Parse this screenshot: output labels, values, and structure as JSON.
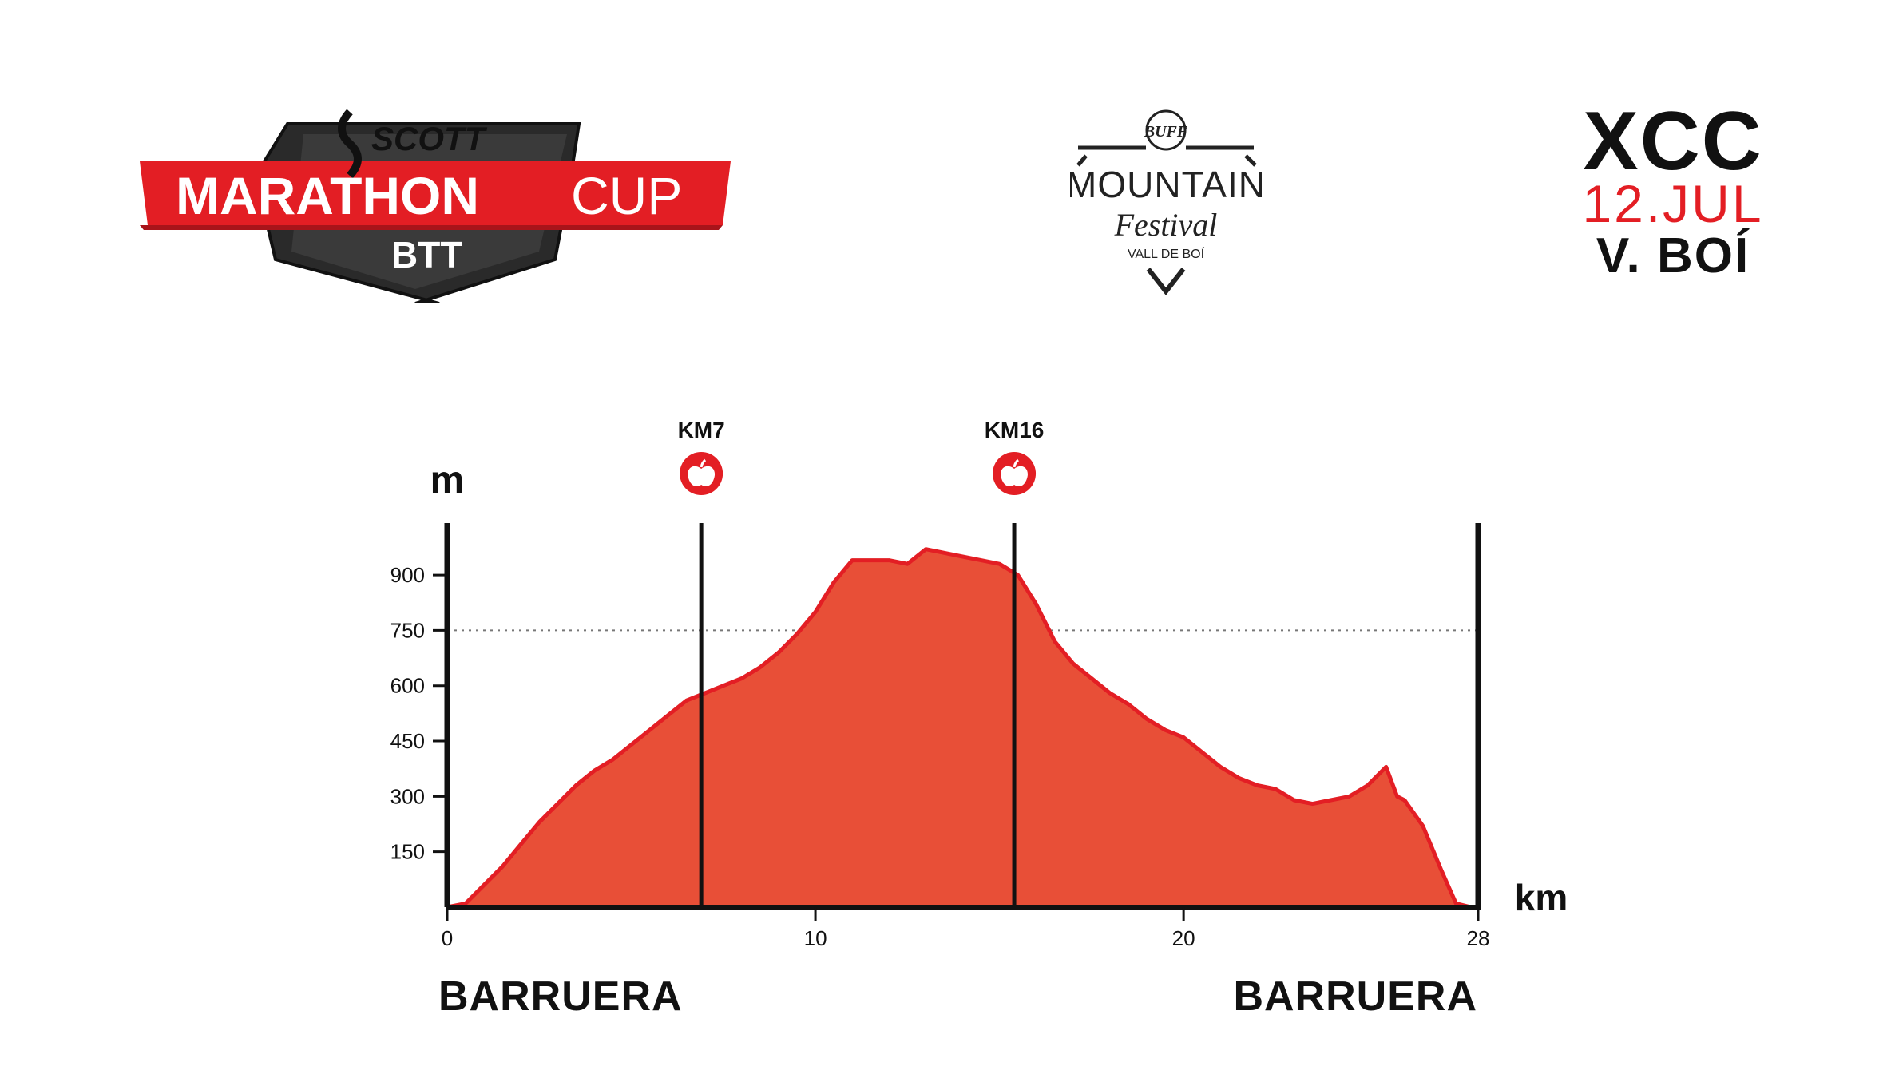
{
  "header": {
    "left_logo": {
      "brand": "SCOTT",
      "line1": "MARATHON",
      "line2": "CUP",
      "line3": "BTT",
      "brand_color": "#e31e24"
    },
    "center_logo": {
      "badge": "BUFF",
      "line1": "MOUNTAIN",
      "line2": "Festival",
      "line3": "VALL DE BOÍ"
    },
    "event": {
      "code": "XCC",
      "date": "12.JUL",
      "place": "V. BOÍ"
    }
  },
  "towns": {
    "start": "BARRUERA",
    "end": "BARRUERA"
  },
  "colors": {
    "fill": "#e84f37",
    "stroke": "#e31e24",
    "axis": "#111111",
    "accent": "#e31e24"
  },
  "icons": {
    "aid_station": "apple-icon"
  },
  "chart_data": {
    "type": "area",
    "xlabel": "km",
    "ylabel": "m",
    "xlim": [
      0,
      28
    ],
    "ylim": [
      0,
      1030
    ],
    "x_ticks": [
      0,
      10,
      20,
      28
    ],
    "y_ticks": [
      150,
      300,
      450,
      600,
      750,
      900
    ],
    "reference_line": {
      "y": 750,
      "style": "dotted"
    },
    "markers": [
      {
        "label": "KM7",
        "x": 6.9,
        "icon": "apple-icon"
      },
      {
        "label": "KM16",
        "x": 15.4,
        "icon": "apple-icon"
      }
    ],
    "series": [
      {
        "x": [
          0,
          0.5,
          1,
          1.5,
          2,
          2.5,
          3,
          3.5,
          4,
          4.5,
          5,
          5.5,
          6,
          6.5,
          7,
          7.5,
          8,
          8.5,
          9,
          9.5,
          10,
          10.5,
          11,
          11.5,
          12,
          12.5,
          13,
          13.5,
          14,
          14.5,
          15,
          15.5,
          16,
          16.5,
          17,
          17.5,
          18,
          18.5,
          19,
          19.5,
          20,
          20.5,
          21,
          21.5,
          22,
          22.5,
          23,
          23.5,
          24,
          24.5,
          25,
          25.5,
          25.8,
          26,
          26.5,
          27,
          27.4,
          27.8,
          28
        ],
        "y": [
          0,
          10,
          60,
          110,
          170,
          230,
          280,
          330,
          370,
          400,
          440,
          480,
          520,
          560,
          580,
          600,
          620,
          650,
          690,
          740,
          800,
          880,
          940,
          940,
          940,
          930,
          970,
          960,
          950,
          940,
          930,
          900,
          820,
          720,
          660,
          620,
          580,
          550,
          510,
          480,
          460,
          420,
          380,
          350,
          330,
          320,
          290,
          280,
          290,
          300,
          330,
          380,
          300,
          290,
          220,
          100,
          10,
          0,
          0
        ]
      }
    ]
  }
}
